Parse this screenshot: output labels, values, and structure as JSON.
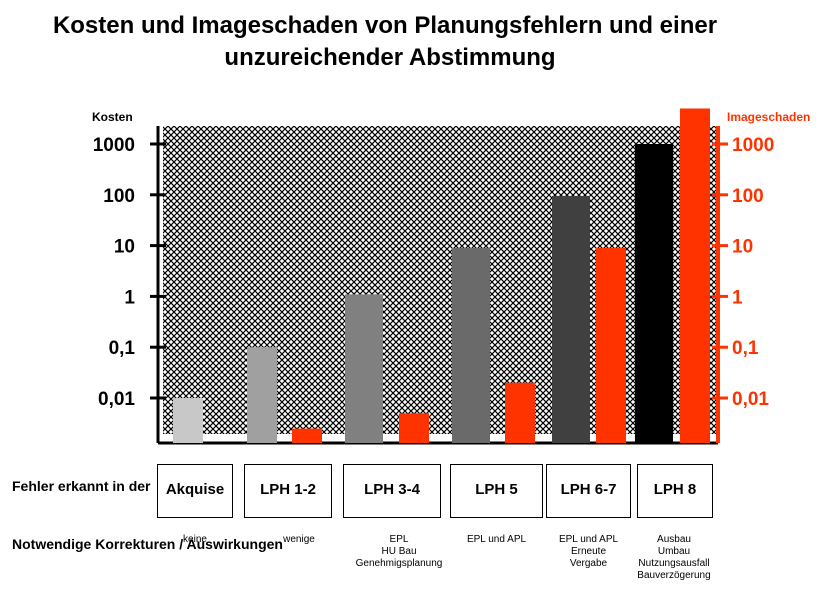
{
  "chart_data": {
    "type": "bar",
    "title": "Kosten und Imageschaden von Planungsfehlern und einer",
    "title_line2": "unzureichender Abstimmung",
    "ylabel_left": "Kosten",
    "ylabel_right": "Imageschaden",
    "scale": "log",
    "ylim": [
      0.0015,
      5000
    ],
    "ticks": [
      1000,
      100,
      10,
      1,
      0.1,
      0.01
    ],
    "tick_labels": [
      "1000",
      "100",
      "10",
      "1",
      "0,1",
      "0,01"
    ],
    "categories": [
      "Akquise",
      "LPH 1-2",
      "LPH 3-4",
      "LPH 5",
      "LPH 6-7",
      "LPH 8"
    ],
    "series": [
      {
        "name": "Kosten",
        "values": [
          0.01,
          0.1,
          1.1,
          9,
          95,
          1000
        ],
        "colors": [
          "#c8c8c8",
          "#a0a0a0",
          "#808080",
          "#6a6a6a",
          "#404040",
          "#000000"
        ]
      },
      {
        "name": "Imageschaden",
        "values": [
          null,
          0.0025,
          0.005,
          0.02,
          9,
          5000
        ],
        "colors": [
          "#ff3300"
        ]
      }
    ],
    "grid": false,
    "background": "crosshatch"
  },
  "rows": {
    "fehler_label": "Fehler erkannt\nin der",
    "korrekturen_label": "Notwendige\nKorrekturen /\nAuswirkungen"
  },
  "notes": [
    "keine",
    "wenige",
    "EPL\nHU Bau\nGenehmigsplanung",
    "EPL und APL",
    "EPL und APL\nErneute\nVergabe",
    "Ausbau\nUmbau\nNutzungsausfall\nBauverzögerung"
  ],
  "colors": {
    "accent": "#ff3300"
  }
}
